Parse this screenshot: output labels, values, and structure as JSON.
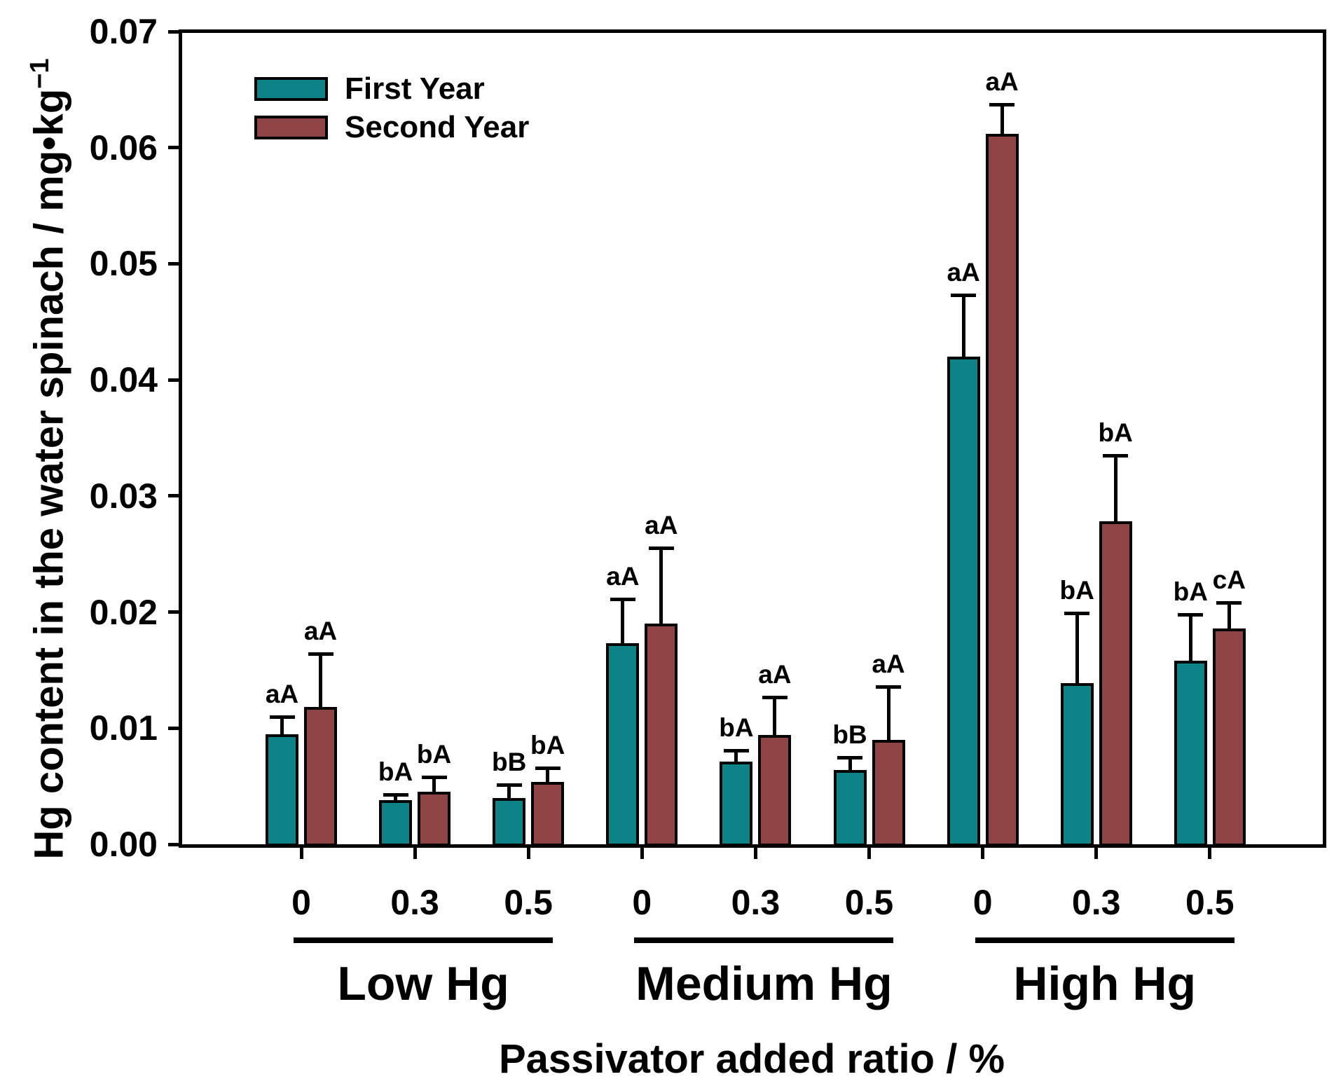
{
  "chart_data": {
    "type": "bar",
    "title": "",
    "xlabel": "Passivator added ratio / %",
    "ylabel": "Hg content in the water spinach / mg•kg−1",
    "ylabel_main": "Hg content in the water spinach / mg•kg",
    "ylabel_sup": "−1",
    "ylim": [
      0,
      0.07
    ],
    "ytick_labels": [
      "0.00",
      "0.01",
      "0.02",
      "0.03",
      "0.04",
      "0.05",
      "0.06",
      "0.07"
    ],
    "x_tick_labels": [
      "0",
      "0.3",
      "0.5",
      "0",
      "0.3",
      "0.5",
      "0",
      "0.3",
      "0.5"
    ],
    "group_labels": [
      "Low Hg",
      "Medium Hg",
      "High Hg"
    ],
    "groups": [
      {
        "label": "Low Hg",
        "ratios": [
          "0",
          "0.3",
          "0.5"
        ]
      },
      {
        "label": "Medium Hg",
        "ratios": [
          "0",
          "0.3",
          "0.5"
        ]
      },
      {
        "label": "High Hg",
        "ratios": [
          "0",
          "0.3",
          "0.5"
        ]
      }
    ],
    "legend": [
      "First Year",
      "Second Year"
    ],
    "legend_position": "top-left-inside",
    "grid": false,
    "colors": {
      "first_year": "#0D8287",
      "second_year": "#8E4345",
      "axis": "#000000",
      "background": "#FFFFFF"
    },
    "series": [
      {
        "name": "First Year",
        "color": "#0D8287",
        "values": [
          0.0095,
          0.0038,
          0.004,
          0.0173,
          0.0071,
          0.0064,
          0.042,
          0.0139,
          0.0158
        ],
        "errors_plus": [
          0.0015,
          0.0005,
          0.0011,
          0.0038,
          0.001,
          0.0011,
          0.0053,
          0.006,
          0.004
        ],
        "letters": [
          "aA",
          "bA",
          "bB",
          "aA",
          "bA",
          "bB",
          "aA",
          "bA",
          "bA"
        ]
      },
      {
        "name": "Second Year",
        "color": "#8E4345",
        "values": [
          0.0118,
          0.0045,
          0.0054,
          0.019,
          0.0094,
          0.009,
          0.0612,
          0.0278,
          0.0186
        ],
        "errors_plus": [
          0.0046,
          0.0013,
          0.0012,
          0.0065,
          0.0033,
          0.0046,
          0.0025,
          0.0057,
          0.0022
        ],
        "letters": [
          "aA",
          "bA",
          "bA",
          "aA",
          "aA",
          "aA",
          "aA",
          "bA",
          "cA"
        ]
      }
    ]
  }
}
